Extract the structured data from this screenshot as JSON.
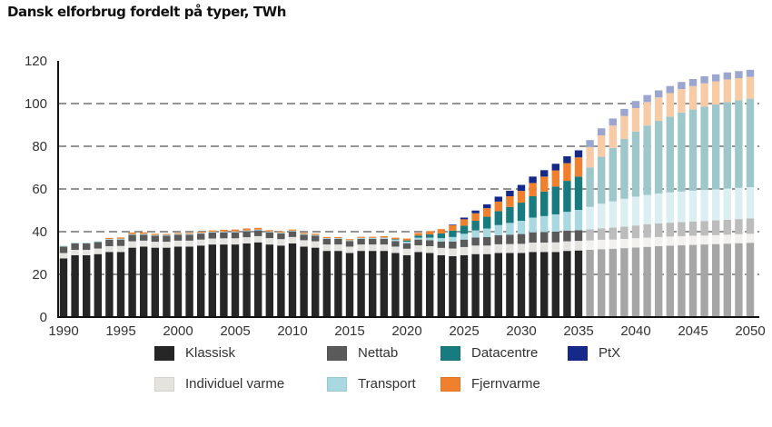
{
  "title": "Dansk elforbrug fordelt på typer, TWh",
  "chart_data": {
    "type": "bar",
    "stacked": true,
    "title": "Dansk elforbrug fordelt på typer, TWh",
    "xlabel": "",
    "ylabel": "",
    "ylim": [
      0,
      120
    ],
    "yticks": [
      0,
      20,
      40,
      60,
      80,
      100,
      120
    ],
    "xticks": [
      1990,
      1995,
      2000,
      2005,
      2010,
      2015,
      2020,
      2025,
      2030,
      2035,
      2040,
      2045,
      2050
    ],
    "grid": "horizontal-dashed",
    "projection_from": 2036,
    "legend_position": "bottom",
    "x": [
      1990,
      1991,
      1992,
      1993,
      1994,
      1995,
      1996,
      1997,
      1998,
      1999,
      2000,
      2001,
      2002,
      2003,
      2004,
      2005,
      2006,
      2007,
      2008,
      2009,
      2010,
      2011,
      2012,
      2013,
      2014,
      2015,
      2016,
      2017,
      2018,
      2019,
      2020,
      2021,
      2022,
      2023,
      2024,
      2025,
      2026,
      2027,
      2028,
      2029,
      2030,
      2031,
      2032,
      2033,
      2034,
      2035,
      2036,
      2037,
      2038,
      2039,
      2040,
      2041,
      2042,
      2043,
      2044,
      2045,
      2046,
      2047,
      2048,
      2049,
      2050
    ],
    "series": [
      {
        "name": "Klassisk",
        "color": "#262626",
        "future_color": "#a6a6a6",
        "values": [
          27.5,
          29,
          29,
          29.5,
          30.5,
          30.5,
          32.5,
          33,
          32.5,
          32.5,
          33,
          33,
          33.5,
          34,
          34,
          34,
          34.5,
          35,
          34,
          33.5,
          34.5,
          33,
          32.5,
          31,
          31,
          30,
          31,
          31,
          31,
          30,
          29,
          30.5,
          30,
          29,
          28.5,
          29,
          29.5,
          29.5,
          30,
          30,
          30,
          30.5,
          30.5,
          30.5,
          31,
          31.2,
          31.5,
          31.8,
          32,
          32.3,
          32.6,
          32.9,
          33.2,
          33.4,
          33.6,
          33.8,
          34,
          34.2,
          34.4,
          34.6,
          34.8
        ]
      },
      {
        "name": "Individuel varme",
        "color": "#e5e3de",
        "future_color": "#f2f1ee",
        "values": [
          2.5,
          2.5,
          2.5,
          2.6,
          2.7,
          2.8,
          3,
          2.8,
          2.8,
          2.8,
          2.8,
          2.8,
          2.8,
          2.8,
          2.9,
          2.9,
          2.9,
          2.9,
          3,
          3,
          3,
          3,
          3,
          3,
          3,
          3,
          3,
          3,
          3,
          3,
          3,
          3.1,
          3.2,
          3.4,
          3.6,
          3.8,
          4,
          4,
          4.1,
          4.2,
          4.3,
          4.4,
          4.4,
          4.5,
          4.5,
          4.5,
          4.4,
          4.4,
          4.3,
          4.3,
          4.3,
          4.3,
          4.3,
          4.3,
          4.3,
          4.3,
          4.2,
          4.2,
          4.2,
          4.2,
          4.2
        ]
      },
      {
        "name": "Nettab",
        "color": "#5a5a5a",
        "future_color": "#bcbcbc",
        "values": [
          3,
          3,
          3,
          3,
          3,
          3,
          3,
          2.8,
          2.8,
          2.8,
          2.8,
          2.8,
          2.8,
          2.8,
          2.8,
          2.8,
          2.8,
          2.7,
          2.7,
          2.7,
          2.6,
          2.6,
          2.6,
          2.6,
          2.6,
          2.6,
          2.6,
          2.6,
          2.6,
          2.6,
          2.6,
          2.7,
          2.8,
          3,
          3.3,
          3.5,
          3.8,
          4,
          4.2,
          4.4,
          4.6,
          4.8,
          4.9,
          5,
          5,
          5,
          5.2,
          5.4,
          5.6,
          5.8,
          6,
          6.2,
          6.4,
          6.5,
          6.6,
          6.7,
          6.8,
          6.9,
          7,
          7.1,
          7.2
        ]
      },
      {
        "name": "Transport",
        "color": "#a9d8e0",
        "future_color": "#dbeff2",
        "values": [
          0.4,
          0.4,
          0.4,
          0.4,
          0.4,
          0.4,
          0.4,
          0.4,
          0.4,
          0.4,
          0.4,
          0.4,
          0.4,
          0.4,
          0.4,
          0.4,
          0.4,
          0.4,
          0.4,
          0.4,
          0.4,
          0.4,
          0.4,
          0.4,
          0.4,
          0.4,
          0.5,
          0.5,
          0.6,
          0.6,
          0.7,
          0.9,
          1.2,
          1.6,
          2.1,
          2.7,
          3.3,
          4,
          4.8,
          5.5,
          6.2,
          6.9,
          7.5,
          8.1,
          8.8,
          9.5,
          10.5,
          11.5,
          12.3,
          13,
          13.5,
          13.8,
          14,
          14.2,
          14.3,
          14.4,
          14.5,
          14.5,
          14.6,
          14.6,
          14.6
        ]
      },
      {
        "name": "Datacentre",
        "color": "#177b80",
        "future_color": "#9dc7ca",
        "values": [
          0,
          0,
          0,
          0,
          0,
          0,
          0,
          0,
          0,
          0,
          0,
          0,
          0,
          0,
          0,
          0,
          0,
          0,
          0,
          0,
          0,
          0,
          0,
          0,
          0,
          0,
          0,
          0,
          0,
          0.3,
          0.6,
          1,
          1.5,
          2.2,
          3,
          3.8,
          4.5,
          5.5,
          6.5,
          7.5,
          8.5,
          10,
          11.5,
          13,
          14.5,
          15.6,
          18.5,
          22,
          25,
          28,
          30.5,
          32.5,
          34,
          35.5,
          37,
          38,
          39,
          39.8,
          40.5,
          41,
          41.5
        ]
      },
      {
        "name": "Fjernvarme",
        "color": "#f07f2e",
        "future_color": "#f8cba7",
        "values": [
          0,
          0,
          0,
          0,
          0.5,
          0.6,
          0.7,
          0.7,
          0.5,
          0.4,
          0.4,
          0.4,
          0.5,
          0.6,
          0.8,
          0.9,
          0.9,
          0.8,
          0.6,
          0.5,
          0.5,
          0.5,
          0.5,
          0.5,
          0.5,
          0.5,
          0.5,
          0.5,
          0.7,
          0.7,
          0.9,
          1.2,
          1.5,
          2,
          2.5,
          3,
          3.5,
          4,
          4.5,
          5,
          5.5,
          6.2,
          7,
          7.6,
          8.3,
          9,
          9.5,
          10,
          10.5,
          10.8,
          11,
          11,
          11,
          11,
          11,
          11,
          11,
          10.8,
          10.6,
          10.4,
          10.2
        ]
      },
      {
        "name": "PtX",
        "color": "#14298a",
        "future_color": "#9aa6cf",
        "values": [
          0,
          0,
          0,
          0,
          0,
          0,
          0,
          0,
          0,
          0,
          0,
          0,
          0,
          0,
          0,
          0,
          0,
          0,
          0,
          0,
          0,
          0,
          0,
          0,
          0,
          0,
          0,
          0,
          0,
          0,
          0,
          0,
          0,
          0,
          0.3,
          0.8,
          1.3,
          1.8,
          2.3,
          2.6,
          2.8,
          3,
          3,
          3.1,
          3.2,
          3.3,
          3.3,
          3.3,
          3.3,
          3.3,
          3.3,
          3.3,
          3.3,
          3.3,
          3.3,
          3.3,
          3.3,
          3.3,
          3.3,
          3.3,
          3.3
        ]
      }
    ]
  },
  "legend": {
    "items": [
      {
        "label": "Klassisk",
        "color": "#262626"
      },
      {
        "label": "Nettab",
        "color": "#5a5a5a"
      },
      {
        "label": "Datacentre",
        "color": "#177b80"
      },
      {
        "label": "PtX",
        "color": "#14298a"
      },
      {
        "label": "Individuel varme",
        "color": "#e5e3de"
      },
      {
        "label": "Transport",
        "color": "#a9d8e0"
      },
      {
        "label": "Fjernvarme",
        "color": "#f07f2e"
      }
    ]
  }
}
